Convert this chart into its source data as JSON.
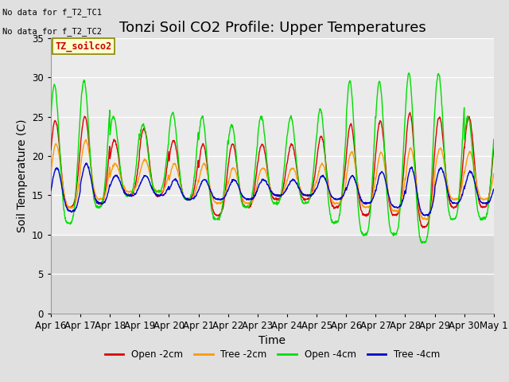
{
  "title": "Tonzi Soil CO2 Profile: Upper Temperatures",
  "ylabel": "Soil Temperature (C)",
  "xlabel": "Time",
  "no_data_text": [
    "No data for f_T2_TC1",
    "No data for f_T2_TC2"
  ],
  "legend_label": "TZ_soilco2",
  "series_labels": [
    "Open -2cm",
    "Tree -2cm",
    "Open -4cm",
    "Tree -4cm"
  ],
  "series_colors": [
    "#dd0000",
    "#ff9900",
    "#00dd00",
    "#0000cc"
  ],
  "xtick_labels": [
    "Apr 16",
    "Apr 17",
    "Apr 18",
    "Apr 19",
    "Apr 20",
    "Apr 21",
    "Apr 22",
    "Apr 23",
    "Apr 24",
    "Apr 25",
    "Apr 26",
    "Apr 27",
    "Apr 28",
    "Apr 29",
    "Apr 30",
    "May 1"
  ],
  "ylim": [
    0,
    35
  ],
  "yticks": [
    0,
    5,
    10,
    15,
    20,
    25,
    30,
    35
  ],
  "bg_color_outer": "#e0e0e0",
  "bg_color_inner": "#ebebeb",
  "bg_color_inner2": "#d8d8d8",
  "grid_color": "#ffffff",
  "title_fontsize": 13,
  "axis_label_fontsize": 10,
  "tick_fontsize": 8.5,
  "n_days": 15,
  "pts_per_day": 96,
  "figsize": [
    6.4,
    4.8
  ],
  "dpi": 100
}
